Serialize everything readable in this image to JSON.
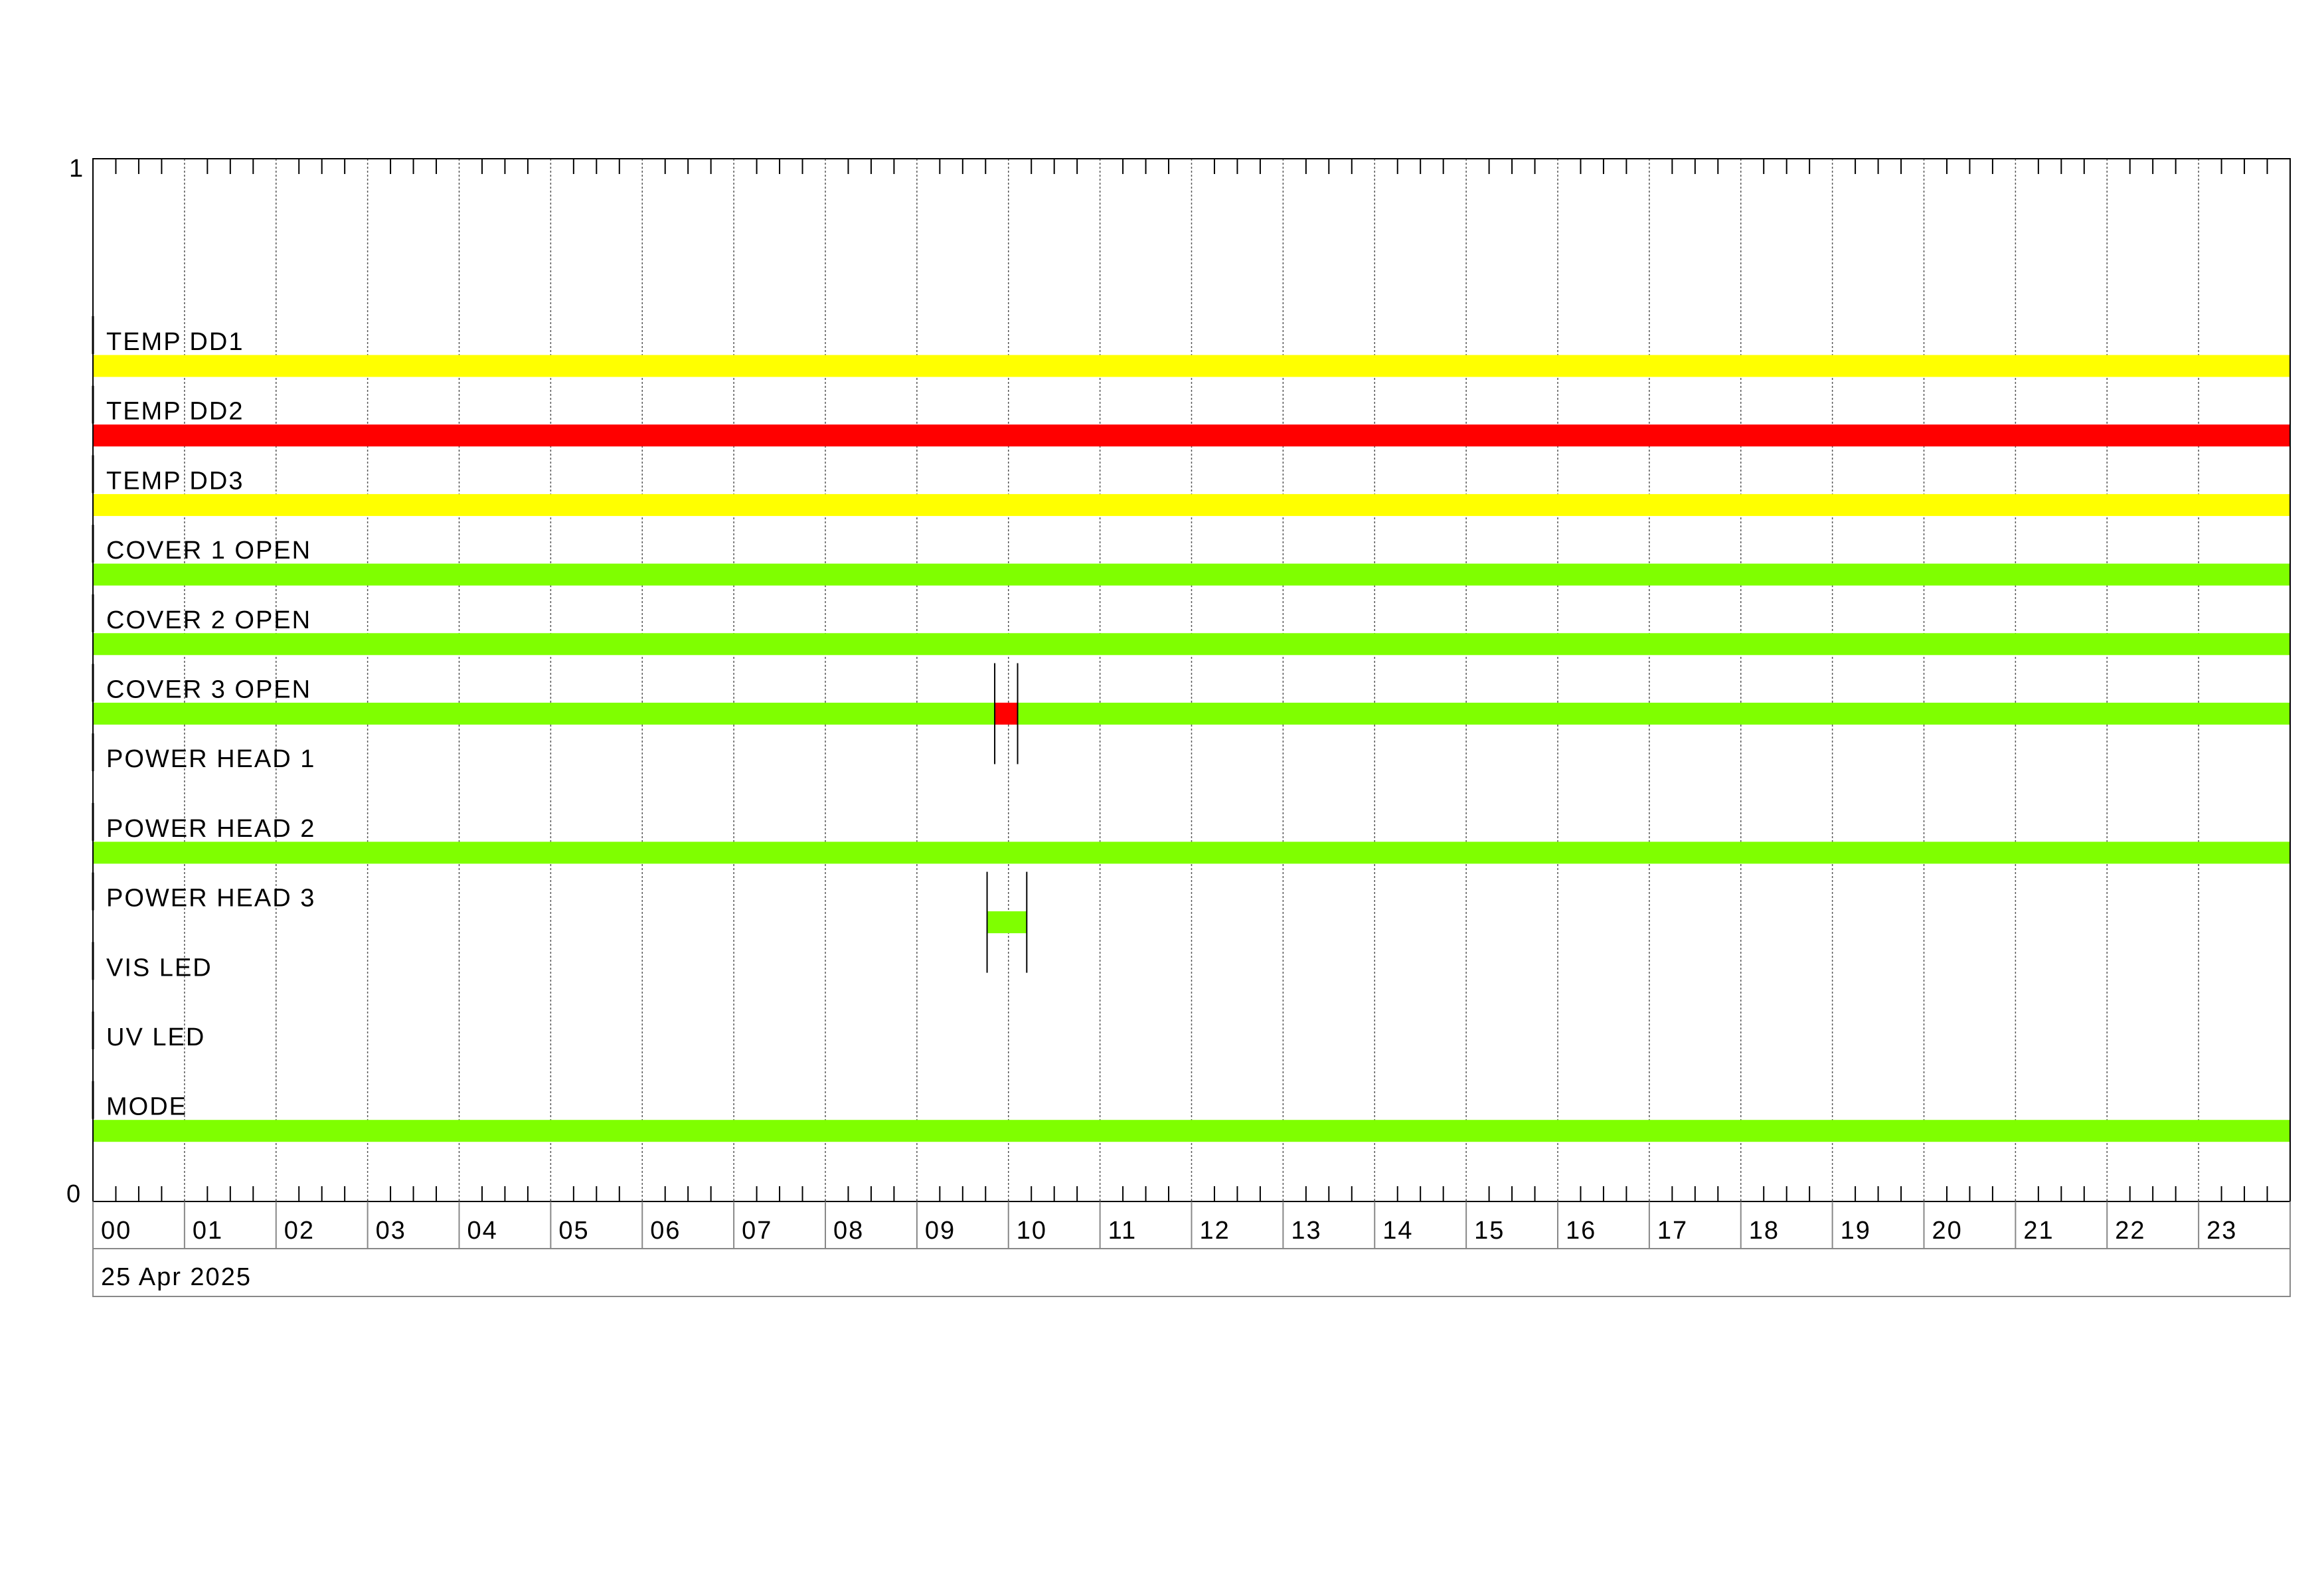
{
  "chart_data": {
    "type": "timeline",
    "y_axis": {
      "top_label": "1",
      "bottom_label": "0"
    },
    "x_axis": {
      "unit": "hour",
      "range": [
        "00:00",
        "24:00"
      ],
      "tick_labels": [
        "00",
        "01",
        "02",
        "03",
        "04",
        "05",
        "06",
        "07",
        "08",
        "09",
        "10",
        "11",
        "12",
        "13",
        "14",
        "15",
        "16",
        "17",
        "18",
        "19",
        "20",
        "21",
        "22",
        "23"
      ],
      "minor_ticks_per_hour": 4,
      "grid": true,
      "date_label": "25 Apr 2025"
    },
    "colors": {
      "yellow": "#ffff00",
      "red": "#ff0000",
      "green": "#7fff00"
    },
    "series": [
      {
        "name": "TEMP DD1",
        "segments": [
          {
            "start": "00:00",
            "end": "24:00",
            "color": "#ffff00"
          }
        ]
      },
      {
        "name": "TEMP DD2",
        "segments": [
          {
            "start": "00:00",
            "end": "24:00",
            "color": "#ff0000"
          }
        ]
      },
      {
        "name": "TEMP DD3",
        "segments": [
          {
            "start": "00:00",
            "end": "24:00",
            "color": "#ffff00"
          }
        ]
      },
      {
        "name": "COVER 1 OPEN",
        "segments": [
          {
            "start": "00:00",
            "end": "24:00",
            "color": "#7fff00"
          }
        ]
      },
      {
        "name": "COVER 2 OPEN",
        "segments": [
          {
            "start": "00:00",
            "end": "24:00",
            "color": "#7fff00"
          }
        ]
      },
      {
        "name": "COVER 3 OPEN",
        "segments": [
          {
            "start": "00:00",
            "end": "09:51",
            "color": "#7fff00"
          },
          {
            "start": "09:51",
            "end": "10:06",
            "color": "#ff0000"
          },
          {
            "start": "10:06",
            "end": "24:00",
            "color": "#7fff00"
          }
        ],
        "markers": [
          "09:51",
          "10:06"
        ]
      },
      {
        "name": "POWER HEAD 1",
        "segments": []
      },
      {
        "name": "POWER HEAD 2",
        "segments": [
          {
            "start": "00:00",
            "end": "24:00",
            "color": "#7fff00"
          }
        ]
      },
      {
        "name": "POWER HEAD 3",
        "segments": [
          {
            "start": "09:46",
            "end": "10:12",
            "color": "#7fff00"
          }
        ],
        "markers": [
          "09:46",
          "10:12"
        ]
      },
      {
        "name": "VIS LED",
        "segments": []
      },
      {
        "name": "UV LED",
        "segments": []
      },
      {
        "name": "MODE",
        "segments": [
          {
            "start": "00:00",
            "end": "24:00",
            "color": "#7fff00"
          }
        ]
      }
    ]
  }
}
